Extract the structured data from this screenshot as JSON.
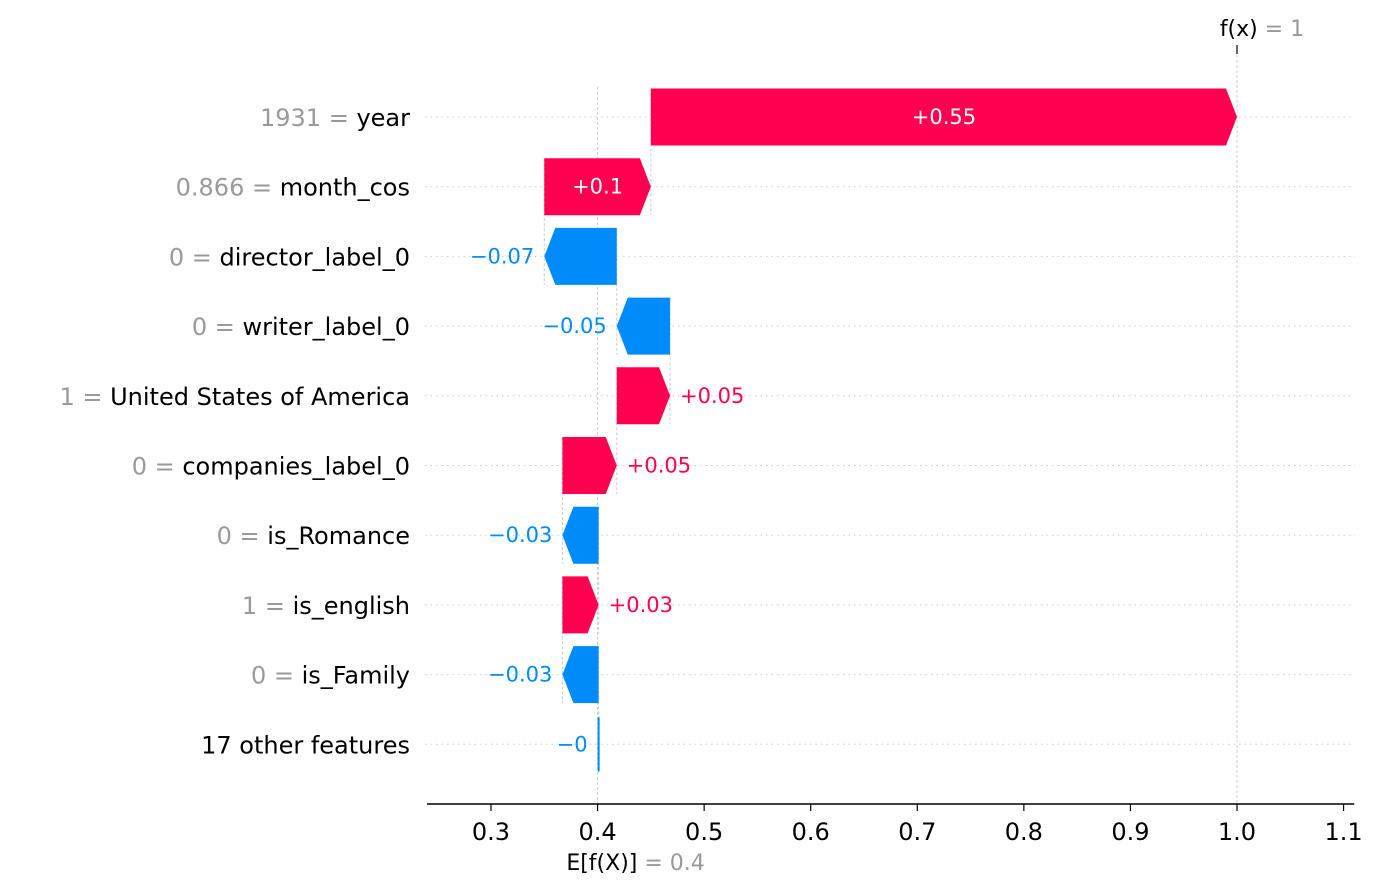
{
  "chart_data": {
    "type": "waterfall",
    "base_value": 0.4,
    "final_value": 1.0,
    "fx_label": {
      "name": "f(x)",
      "value": "1"
    },
    "ex_label": {
      "name": "E[f(X)]",
      "value": "0.4"
    },
    "xlim": [
      0.24,
      1.11
    ],
    "xticks": [
      {
        "value": 0.3,
        "label": "0.3"
      },
      {
        "value": 0.4,
        "label": "0.4"
      },
      {
        "value": 0.5,
        "label": "0.5"
      },
      {
        "value": 0.6,
        "label": "0.6"
      },
      {
        "value": 0.7,
        "label": "0.7"
      },
      {
        "value": 0.8,
        "label": "0.8"
      },
      {
        "value": 0.9,
        "label": "0.9"
      },
      {
        "value": 1.0,
        "label": "1.0"
      },
      {
        "value": 1.1,
        "label": "1.1"
      }
    ],
    "features": [
      {
        "value_text": "1931",
        "name": "year",
        "shap": 0.55,
        "label": "+0.55",
        "start": 0.45,
        "end": 1.0
      },
      {
        "value_text": "0.866",
        "name": "month_cos",
        "shap": 0.1,
        "label": "+0.1",
        "start": 0.35,
        "end": 0.45
      },
      {
        "value_text": "0",
        "name": "director_label_0",
        "shap": -0.07,
        "label": "−0.07",
        "start": 0.418,
        "end": 0.35
      },
      {
        "value_text": "0",
        "name": "writer_label_0",
        "shap": -0.05,
        "label": "−0.05",
        "start": 0.468,
        "end": 0.418
      },
      {
        "value_text": "1",
        "name": "United States of America",
        "shap": 0.05,
        "label": "+0.05",
        "start": 0.418,
        "end": 0.468
      },
      {
        "value_text": "0",
        "name": "companies_label_0",
        "shap": 0.05,
        "label": "+0.05",
        "start": 0.367,
        "end": 0.418
      },
      {
        "value_text": "0",
        "name": "is_Romance",
        "shap": -0.03,
        "label": "−0.03",
        "start": 0.401,
        "end": 0.367
      },
      {
        "value_text": "1",
        "name": "is_english",
        "shap": 0.03,
        "label": "+0.03",
        "start": 0.367,
        "end": 0.401
      },
      {
        "value_text": "0",
        "name": "is_Family",
        "shap": -0.03,
        "label": "−0.03",
        "start": 0.401,
        "end": 0.367
      },
      {
        "value_text": "",
        "name": "17 other features",
        "shap": -0.001,
        "label": "−0",
        "start": 0.4,
        "end": 0.401
      }
    ],
    "colors": {
      "positive": "#ff0051",
      "negative": "#008bfb",
      "label_value": "#999999",
      "label_name": "#000000",
      "axis": "#000000",
      "grid": "#cccccc"
    }
  }
}
